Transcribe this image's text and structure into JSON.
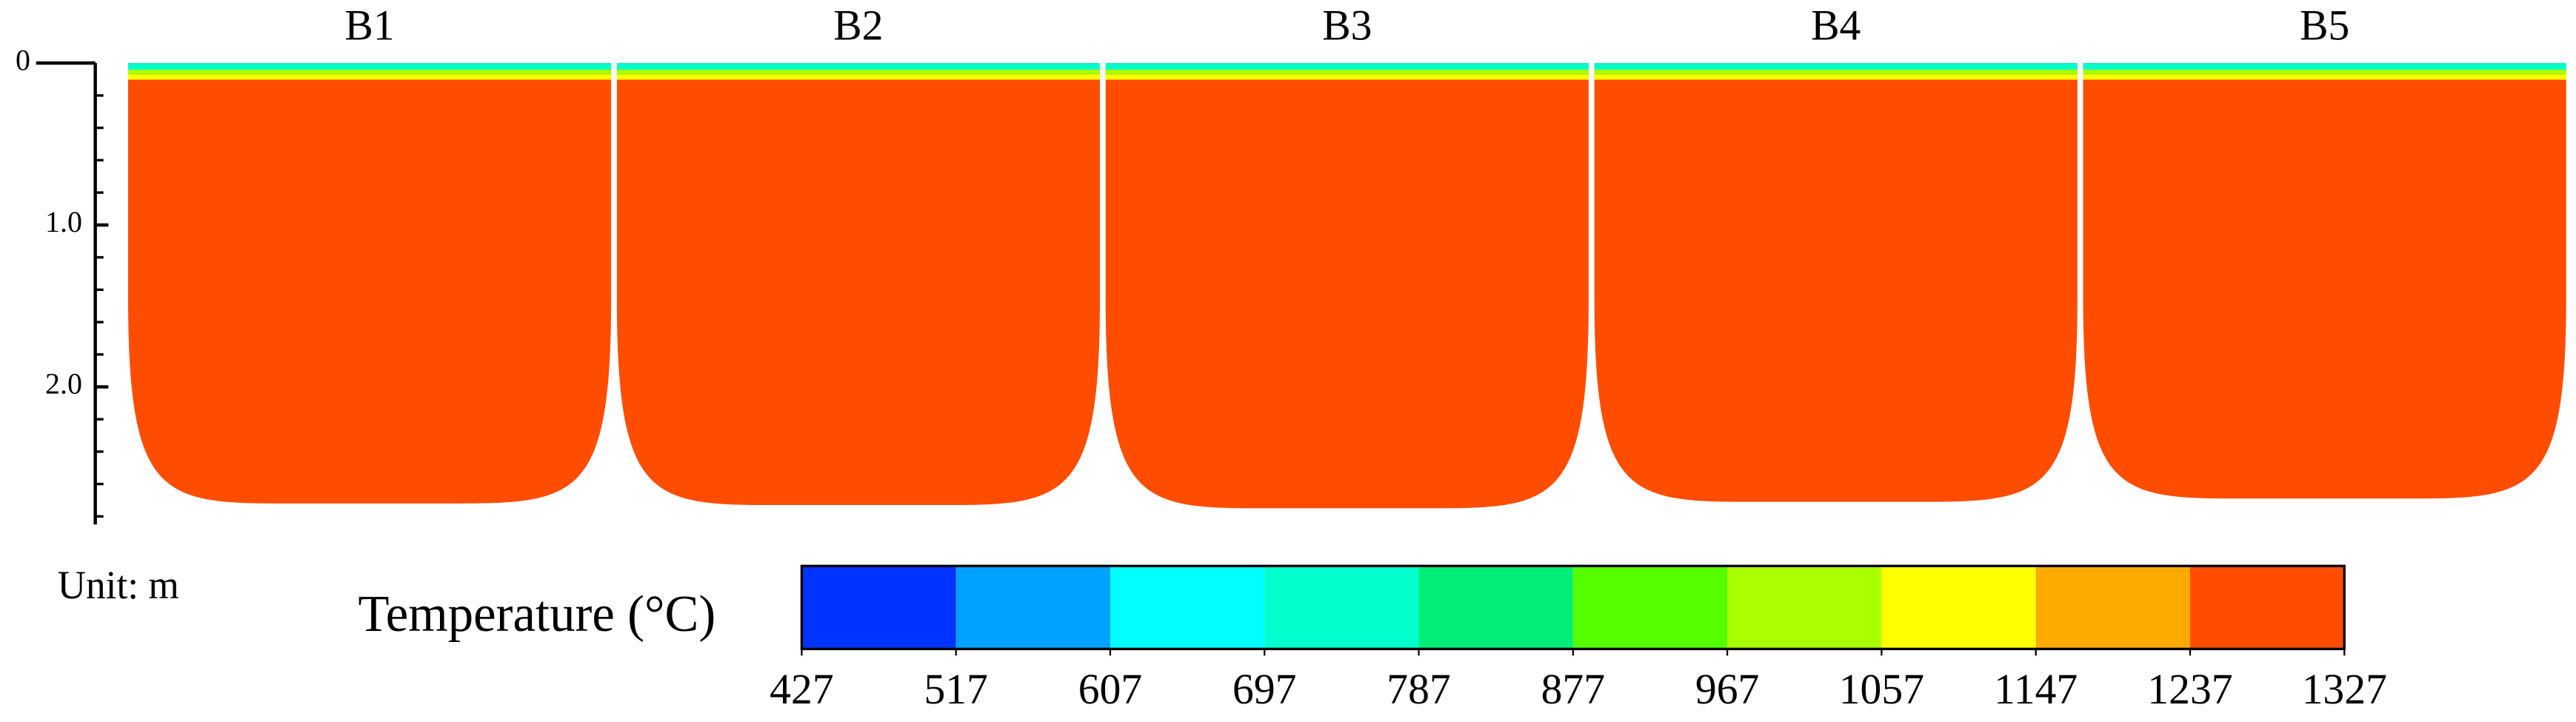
{
  "chart_data": {
    "type": "contour",
    "panels": [
      "B1",
      "B2",
      "B3",
      "B4",
      "B5"
    ],
    "depths": [
      2.72,
      2.73,
      2.75,
      2.71,
      2.69
    ],
    "ylim": [
      0,
      2.85
    ],
    "yticks": [
      0,
      {
        "value": 1,
        "label": "1.0"
      },
      {
        "value": 2,
        "label": "2.0"
      }
    ],
    "yticks_minor": [
      0.2,
      0.4,
      0.6,
      0.8,
      1.2,
      1.4,
      1.6,
      1.8,
      2.2,
      2.4,
      2.6,
      2.8
    ],
    "unit_label": "Unit: m",
    "colorbar_title": "Temperature (°C)",
    "colorbar_ticks": [
      427,
      517,
      607,
      697,
      787,
      877,
      967,
      1057,
      1147,
      1237,
      1327
    ],
    "clim": [
      427,
      1327
    ],
    "colormap": [
      "#0033ff",
      "#00a2ff",
      "#00ffff",
      "#00ffcc",
      "#00ee77",
      "#55ff00",
      "#aaff00",
      "#ffff00",
      "#ffaa00",
      "#ff4d00"
    ]
  }
}
